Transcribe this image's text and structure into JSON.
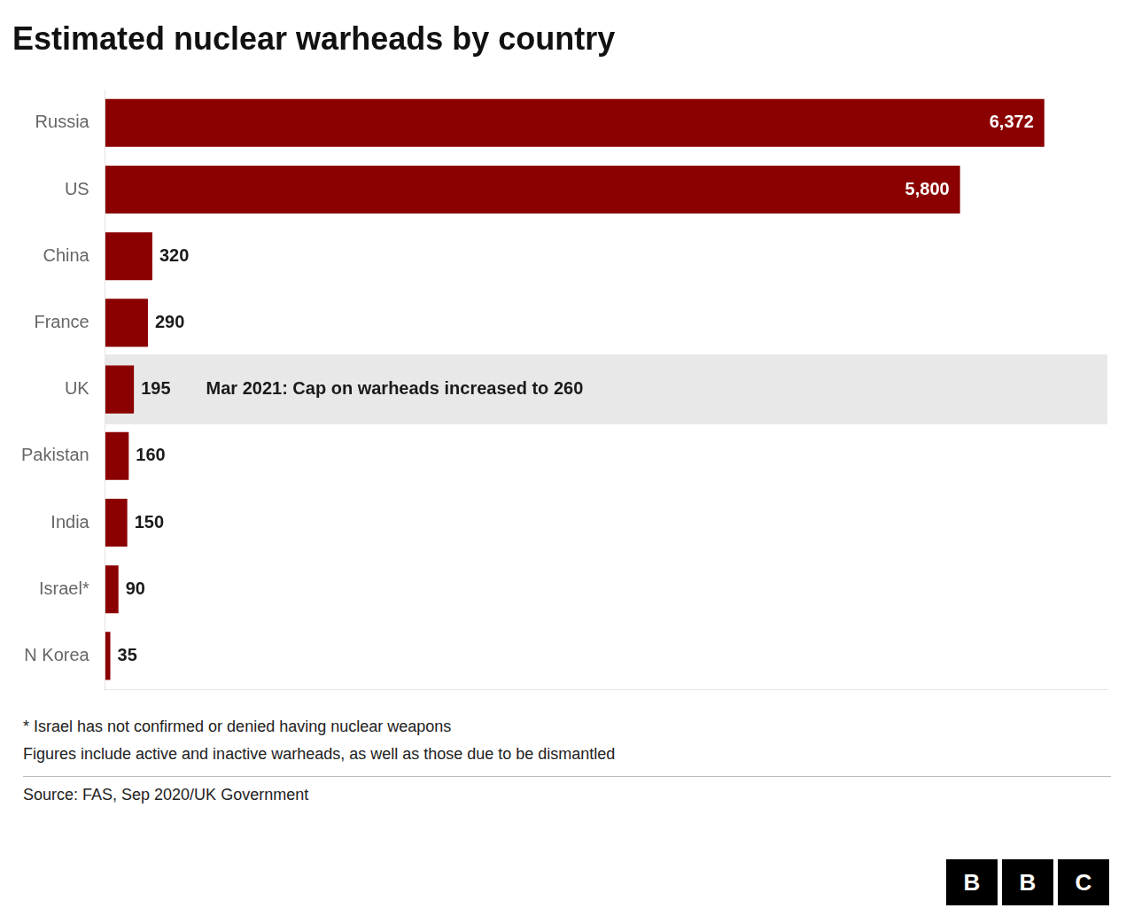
{
  "chart_data": {
    "type": "bar",
    "orientation": "horizontal",
    "title": "Estimated nuclear warheads by country",
    "categories": [
      "Russia",
      "US",
      "China",
      "France",
      "UK",
      "Pakistan",
      "India",
      "Israel*",
      "N Korea"
    ],
    "values": [
      6372,
      5800,
      320,
      290,
      195,
      160,
      150,
      90,
      35
    ],
    "value_labels": [
      "6,372",
      "5,800",
      "320",
      "290",
      "195",
      "160",
      "150",
      "90",
      "35"
    ],
    "data_labels": true,
    "color": "#8B0000",
    "xlim": [
      0,
      6800
    ],
    "tick_labels": "y",
    "grid": false,
    "annotations": [
      {
        "text": "Mar 2021: Cap on warheads increased to 260",
        "category": "UK",
        "color": "#e8e8e8"
      }
    ],
    "footnotes": [
      "* Israel has not confirmed or denied having nuclear weapons",
      "Figures include active and inactive warheads, as well as those due to be dismantled"
    ],
    "source": "Source: FAS, Sep 2020/UK Government",
    "logo": "BBC"
  }
}
